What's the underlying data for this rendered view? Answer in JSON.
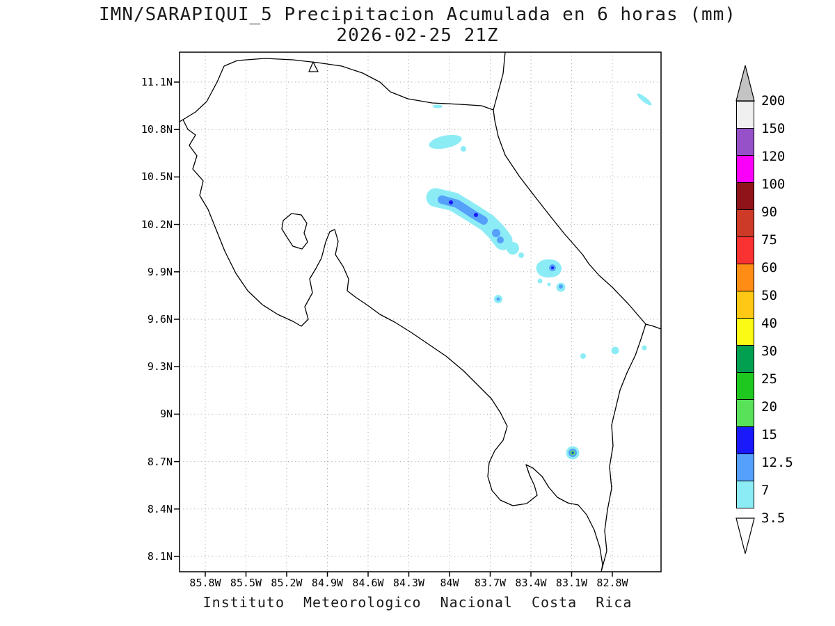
{
  "title": {
    "line1": "IMN/SARAPIQUI_5 Precipitacion Acumulada en 6 horas (mm)",
    "line2": "2026-02-25 21Z"
  },
  "footer": "Instituto Meteorologico Nacional Costa Rica",
  "axes": {
    "y_ticks": [
      "11.1N",
      "10.8N",
      "10.5N",
      "10.2N",
      "9.9N",
      "9.6N",
      "9.3N",
      "9N",
      "8.7N",
      "8.4N",
      "8.1N"
    ],
    "x_ticks": [
      "85.8W",
      "85.5W",
      "85.2W",
      "84.9W",
      "84.6W",
      "84.3W",
      "84W",
      "83.7W",
      "83.4W",
      "83.1W",
      "82.8W"
    ]
  },
  "colorbar": {
    "unit": "mm",
    "levels": [
      "200",
      "150",
      "120",
      "100",
      "90",
      "75",
      "60",
      "50",
      "40",
      "30",
      "25",
      "20",
      "15",
      "12.5",
      "7",
      "3.5"
    ],
    "segment_colors_top_to_bottom": [
      "#f0f0f0",
      "#9650c8",
      "#fa00fa",
      "#8f1319",
      "#cd3a28",
      "#fa3232",
      "#ff8c14",
      "#ffc814",
      "#fafa14",
      "#00a050",
      "#1ec81e",
      "#5ae15a",
      "#1919fa",
      "#55a0fa",
      "#8cecf5"
    ],
    "top_arrow_color": "#c3c3c3",
    "bottom_arrow_color": "#ffffff"
  },
  "map_content": {
    "region": "Costa Rica",
    "precipitation_features": [
      {
        "location": "band ~84.1W-83.5W, 10.0N-10.4N (Sarapiqui / Cordillera Central)",
        "max_bin_mm": "7-12.5"
      },
      {
        "location": "cluster ~83.3W, 9.9N",
        "max_bin_mm": "12.5-15"
      },
      {
        "location": "north Caribbean coast ~84.0W, 10.75N",
        "max_bin_mm": "3.5-7"
      },
      {
        "location": "spot ~83.1W, 8.75N",
        "max_bin_mm": "15-20"
      },
      {
        "location": "scattered specks ~83.4-82.9W, 9.3-9.5N",
        "max_bin_mm": "3.5-7"
      }
    ]
  }
}
